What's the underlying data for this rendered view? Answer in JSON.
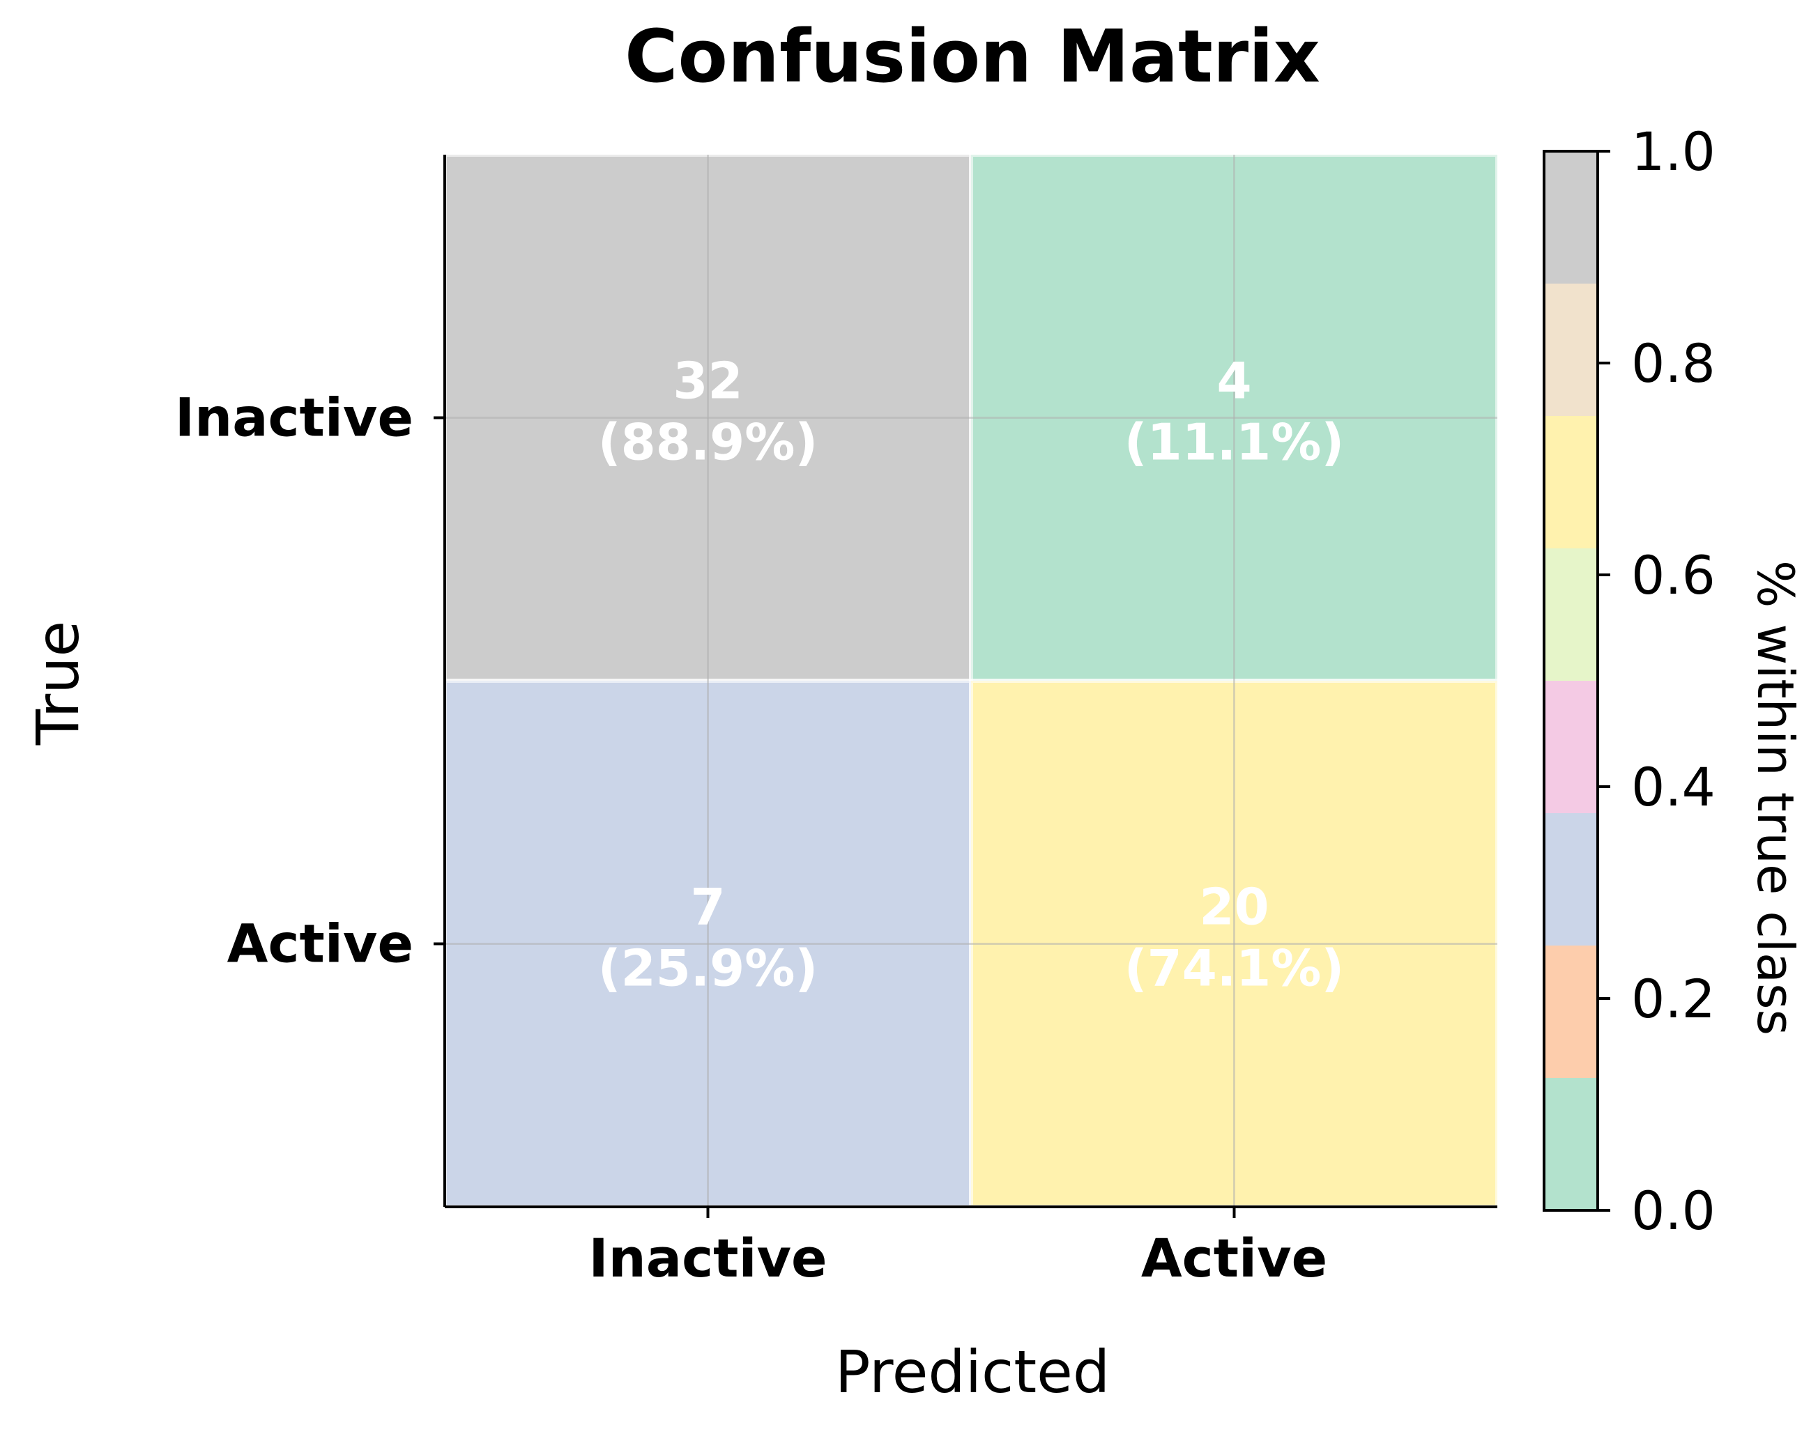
{
  "chart_data": {
    "type": "heatmap",
    "title": "Confusion Matrix",
    "xlabel": "Predicted",
    "ylabel": "True",
    "x_categories": [
      "Inactive",
      "Active"
    ],
    "y_categories": [
      "Inactive",
      "Active"
    ],
    "counts": [
      [
        32,
        4
      ],
      [
        7,
        20
      ]
    ],
    "percent_labels": [
      [
        "(88.9%)",
        "(11.1%)"
      ],
      [
        "(25.9%)",
        "(74.1%)"
      ]
    ],
    "fractions": [
      [
        0.889,
        0.111
      ],
      [
        0.259,
        0.741
      ]
    ],
    "grid": true,
    "colorbar": {
      "label": "% within true class",
      "range": [
        0.0,
        1.0
      ],
      "ticks": [
        "0.0",
        "0.2",
        "0.4",
        "0.6",
        "0.8",
        "1.0"
      ],
      "colors": [
        "#b3e2cd",
        "#fdcdac",
        "#cbd5e8",
        "#f4cae4",
        "#e6f5c9",
        "#fff2ae",
        "#f1e2cc",
        "#cccccc"
      ]
    },
    "cell_text_color": "#ffffff"
  }
}
